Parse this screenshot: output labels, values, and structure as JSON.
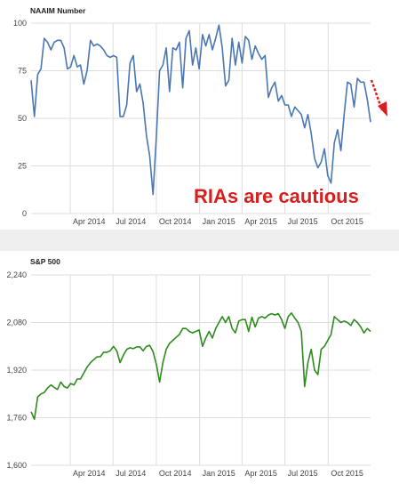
{
  "colors": {
    "naaim_line": "#4a77b4",
    "sp500_line": "#2e8b1e",
    "grid": "#dddddd",
    "annotation": "#d81e1e",
    "divider": "#efefef"
  },
  "chart_data": [
    {
      "type": "line",
      "title": "NAAIM Number",
      "xlabel": "",
      "ylabel": "",
      "x_ticks": [
        "Apr 2014",
        "Jul 2014",
        "Oct 2014",
        "Jan 2015",
        "Apr 2015",
        "Jul 2015",
        "Oct 2015"
      ],
      "y_ticks": [
        0,
        25,
        50,
        75,
        100
      ],
      "ylim": [
        0,
        100
      ],
      "xlim": [
        "2014-01-08",
        "2015-12-30"
      ],
      "grid": true,
      "annotation": "RIAs are cautious",
      "series": [
        {
          "x": [
            "2014-01-08",
            "2014-01-15",
            "2014-01-22",
            "2014-01-29",
            "2014-02-05",
            "2014-02-12",
            "2014-02-19",
            "2014-02-26",
            "2014-03-05",
            "2014-03-12",
            "2014-03-19",
            "2014-03-26",
            "2014-04-02",
            "2014-04-09",
            "2014-04-16",
            "2014-04-23",
            "2014-04-30",
            "2014-05-07",
            "2014-05-14",
            "2014-05-21",
            "2014-05-28",
            "2014-06-04",
            "2014-06-11",
            "2014-06-18",
            "2014-06-25",
            "2014-07-02",
            "2014-07-09",
            "2014-07-16",
            "2014-07-23",
            "2014-07-30",
            "2014-08-06",
            "2014-08-13",
            "2014-08-20",
            "2014-08-27",
            "2014-09-03",
            "2014-09-10",
            "2014-09-17",
            "2014-09-24",
            "2014-10-01",
            "2014-10-08",
            "2014-10-15",
            "2014-10-22",
            "2014-10-29",
            "2014-11-05",
            "2014-11-12",
            "2014-11-19",
            "2014-11-26",
            "2014-12-03",
            "2014-12-10",
            "2014-12-17",
            "2014-12-24",
            "2014-12-31",
            "2015-01-07",
            "2015-01-14",
            "2015-01-21",
            "2015-01-28",
            "2015-02-04",
            "2015-02-11",
            "2015-02-18",
            "2015-02-25",
            "2015-03-04",
            "2015-03-11",
            "2015-03-18",
            "2015-03-25",
            "2015-04-01",
            "2015-04-08",
            "2015-04-15",
            "2015-04-22",
            "2015-04-29",
            "2015-05-06",
            "2015-05-13",
            "2015-05-20",
            "2015-05-27",
            "2015-06-03",
            "2015-06-10",
            "2015-06-17",
            "2015-06-24",
            "2015-07-01",
            "2015-07-08",
            "2015-07-15",
            "2015-07-22",
            "2015-07-29",
            "2015-08-05",
            "2015-08-12",
            "2015-08-19",
            "2015-08-26",
            "2015-09-02",
            "2015-09-09",
            "2015-09-16",
            "2015-09-23",
            "2015-09-30",
            "2015-10-07",
            "2015-10-14",
            "2015-10-21",
            "2015-10-28",
            "2015-11-04",
            "2015-11-11",
            "2015-11-18",
            "2015-11-25",
            "2015-12-02",
            "2015-12-09",
            "2015-12-16",
            "2015-12-23",
            "2015-12-30"
          ],
          "values": [
            70,
            51,
            73,
            76,
            92,
            90,
            86,
            90,
            91,
            91,
            87,
            76,
            77,
            83,
            77,
            78,
            68,
            75,
            91,
            88,
            89,
            88,
            86,
            83,
            82,
            83,
            82,
            51,
            51,
            57,
            79,
            83,
            64,
            68,
            58,
            41,
            30,
            10,
            40,
            75,
            78,
            87,
            64,
            87,
            86,
            90,
            66,
            92,
            96,
            78,
            87,
            76,
            94,
            88,
            94,
            86,
            92,
            99,
            87,
            67,
            70,
            92,
            78,
            90,
            79,
            93,
            91,
            81,
            88,
            84,
            81,
            83,
            61,
            66,
            69,
            59,
            62,
            57,
            57,
            51,
            56,
            54,
            52,
            45,
            52,
            42,
            29,
            24,
            27,
            34,
            20,
            16,
            37,
            44,
            33,
            52,
            69,
            68,
            56,
            71,
            69,
            69,
            60,
            48
          ]
        }
      ]
    },
    {
      "type": "line",
      "title": "S&P 500",
      "xlabel": "",
      "ylabel": "",
      "x_ticks": [
        "Apr 2014",
        "Jul 2014",
        "Oct 2014",
        "Jan 2015",
        "Apr 2015",
        "Jul 2015",
        "Oct 2015"
      ],
      "y_ticks": [
        "1,600",
        "1,760",
        "1,920",
        "2,080",
        "2,240"
      ],
      "ylim": [
        1600,
        2240
      ],
      "xlim": [
        "2014-01-08",
        "2015-12-30"
      ],
      "grid": true,
      "series": [
        {
          "x": [
            "2014-01-08",
            "2014-01-15",
            "2014-01-22",
            "2014-01-29",
            "2014-02-05",
            "2014-02-12",
            "2014-02-19",
            "2014-02-26",
            "2014-03-05",
            "2014-03-12",
            "2014-03-19",
            "2014-03-26",
            "2014-04-02",
            "2014-04-09",
            "2014-04-16",
            "2014-04-23",
            "2014-04-30",
            "2014-05-07",
            "2014-05-14",
            "2014-05-21",
            "2014-05-28",
            "2014-06-04",
            "2014-06-11",
            "2014-06-18",
            "2014-06-25",
            "2014-07-02",
            "2014-07-09",
            "2014-07-16",
            "2014-07-23",
            "2014-07-30",
            "2014-08-06",
            "2014-08-13",
            "2014-08-20",
            "2014-08-27",
            "2014-09-03",
            "2014-09-10",
            "2014-09-17",
            "2014-09-24",
            "2014-10-01",
            "2014-10-08",
            "2014-10-15",
            "2014-10-22",
            "2014-10-29",
            "2014-11-05",
            "2014-11-12",
            "2014-11-19",
            "2014-11-26",
            "2014-12-03",
            "2014-12-10",
            "2014-12-17",
            "2014-12-24",
            "2014-12-31",
            "2015-01-07",
            "2015-01-14",
            "2015-01-21",
            "2015-01-28",
            "2015-02-04",
            "2015-02-11",
            "2015-02-18",
            "2015-02-25",
            "2015-03-04",
            "2015-03-11",
            "2015-03-18",
            "2015-03-25",
            "2015-04-01",
            "2015-04-08",
            "2015-04-15",
            "2015-04-22",
            "2015-04-29",
            "2015-05-06",
            "2015-05-13",
            "2015-05-20",
            "2015-05-27",
            "2015-06-03",
            "2015-06-10",
            "2015-06-17",
            "2015-06-24",
            "2015-07-01",
            "2015-07-08",
            "2015-07-15",
            "2015-07-22",
            "2015-07-29",
            "2015-08-05",
            "2015-08-12",
            "2015-08-19",
            "2015-08-26",
            "2015-09-02",
            "2015-09-09",
            "2015-09-16",
            "2015-09-23",
            "2015-09-30",
            "2015-10-07",
            "2015-10-14",
            "2015-10-21",
            "2015-10-28",
            "2015-11-04",
            "2015-11-11",
            "2015-11-18",
            "2015-11-25",
            "2015-12-02",
            "2015-12-09",
            "2015-12-16",
            "2015-12-23",
            "2015-12-30"
          ],
          "values": [
            1780,
            1755,
            1830,
            1840,
            1845,
            1860,
            1870,
            1862,
            1855,
            1880,
            1865,
            1860,
            1875,
            1870,
            1890,
            1890,
            1910,
            1930,
            1945,
            1955,
            1965,
            1965,
            1980,
            1980,
            1985,
            2000,
            1985,
            1945,
            1970,
            1990,
            1995,
            1992,
            1998,
            1998,
            1985,
            2000,
            2003,
            1982,
            1940,
            1880,
            1945,
            1990,
            2010,
            2020,
            2030,
            2040,
            2060,
            2060,
            2050,
            2045,
            2050,
            2055,
            2000,
            2028,
            2050,
            2028,
            2060,
            2080,
            2100,
            2080,
            2100,
            2060,
            2045,
            2085,
            2090,
            2090,
            2050,
            2098,
            2065,
            2095,
            2100,
            2095,
            2105,
            2110,
            2105,
            2110,
            2090,
            2060,
            2100,
            2112,
            2095,
            2080,
            2050,
            1865,
            1945,
            1990,
            1920,
            1905,
            1990,
            2000,
            2020,
            2040,
            2100,
            2090,
            2080,
            2085,
            2080,
            2070,
            2090,
            2080,
            2065,
            2045,
            2060,
            2050
          ]
        }
      ]
    }
  ]
}
